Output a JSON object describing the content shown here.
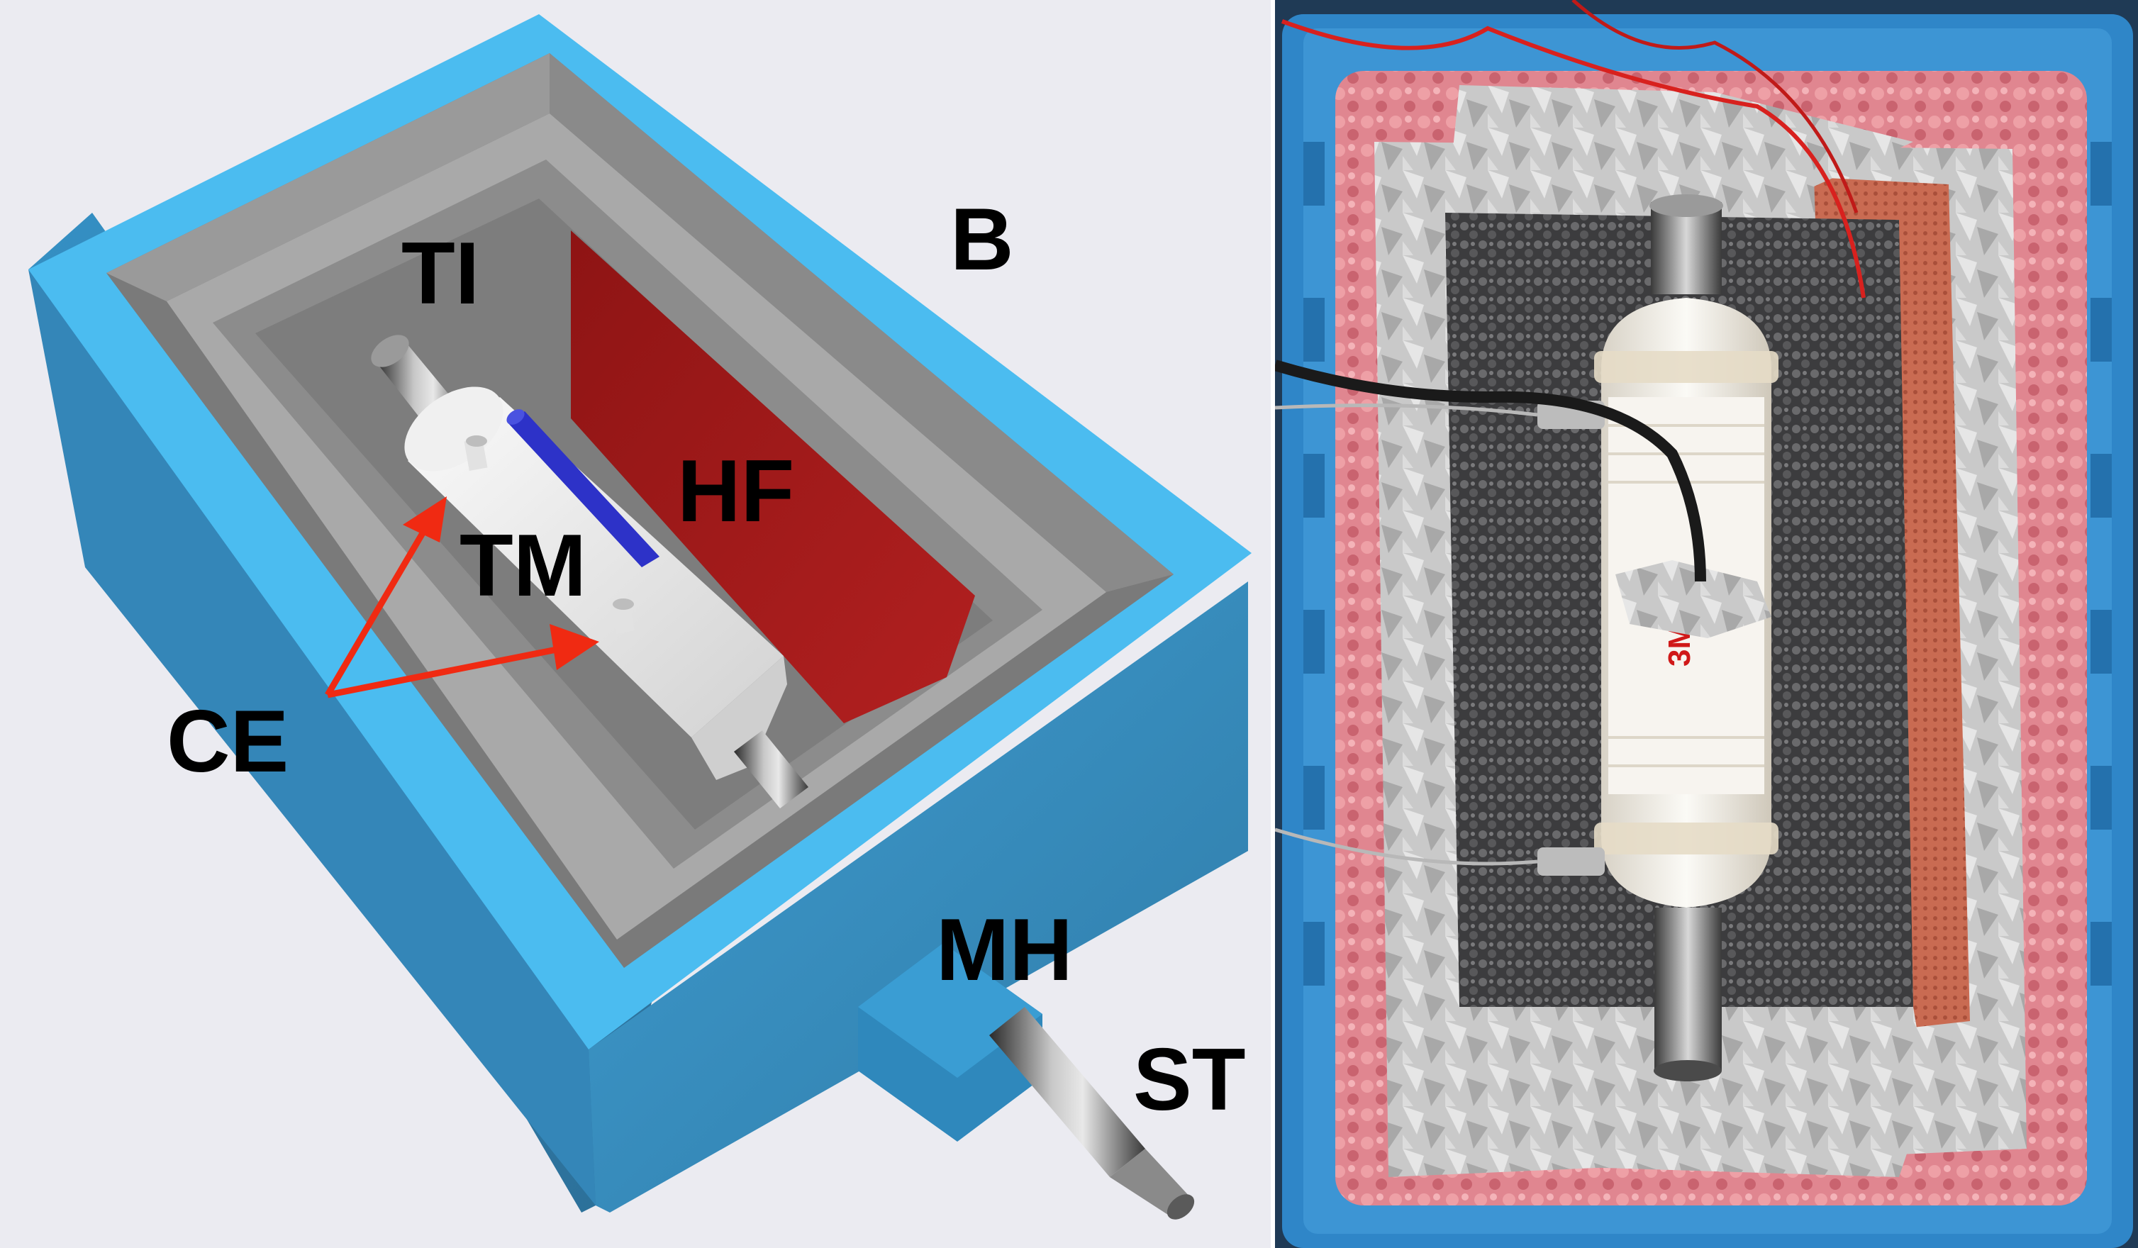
{
  "labels": {
    "TI": "TI",
    "B": "B",
    "HF": "HF",
    "TM": "TM",
    "CE": "CE",
    "MH": "MH",
    "ST": "ST"
  },
  "photo": {
    "module_brand": "3M"
  },
  "colors": {
    "background": "#ebebf1",
    "box_blue": "#3aa6d8",
    "box_blue_dark": "#2f7fa8",
    "heating_foil_red": "#9b1c1c",
    "arrow_red": "#f02a12",
    "magnet_blue": "#2d32c8",
    "insulation_pink": "#e7878f",
    "photo_crate_blue": "#2f86c8"
  }
}
